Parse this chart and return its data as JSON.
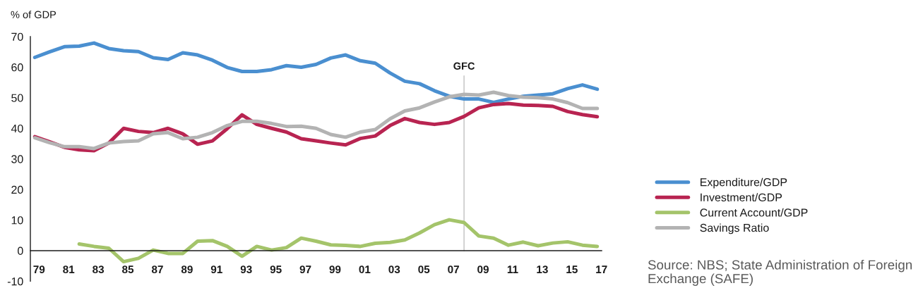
{
  "chart_data": {
    "type": "line",
    "ylabel": "% of GDP",
    "x": [
      1979,
      1980,
      1981,
      1982,
      1983,
      1984,
      1985,
      1986,
      1987,
      1988,
      1989,
      1990,
      1991,
      1992,
      1993,
      1994,
      1995,
      1996,
      1997,
      1998,
      1999,
      2000,
      2001,
      2002,
      2003,
      2004,
      2005,
      2006,
      2007,
      2008,
      2009,
      2010,
      2011,
      2012,
      2013,
      2014,
      2015,
      2016,
      2017
    ],
    "series": [
      {
        "name": "Expenditure/GDP",
        "color": "#4a8fd0",
        "values": [
          63.2,
          65.0,
          66.7,
          66.9,
          67.9,
          66.1,
          65.4,
          65.1,
          63.1,
          62.5,
          64.7,
          64.0,
          62.3,
          59.9,
          58.6,
          58.6,
          59.2,
          60.5,
          60.0,
          60.9,
          63.0,
          64.0,
          62.1,
          61.3,
          58.1,
          55.4,
          54.6,
          52.3,
          50.5,
          49.6,
          49.6,
          48.5,
          49.6,
          50.5,
          50.9,
          51.3,
          53.0,
          54.2,
          52.8
        ]
      },
      {
        "name": "Investment/GDP",
        "color": "#b82451",
        "values": [
          37.3,
          35.6,
          33.8,
          33.0,
          32.7,
          35.2,
          40.0,
          39.0,
          38.6,
          40.0,
          38.2,
          34.8,
          35.9,
          39.9,
          44.4,
          41.3,
          40.0,
          38.8,
          36.6,
          35.9,
          35.2,
          34.6,
          36.7,
          37.5,
          40.9,
          43.2,
          41.9,
          41.3,
          41.9,
          43.9,
          46.7,
          47.8,
          48.1,
          47.6,
          47.5,
          47.2,
          45.5,
          44.5,
          43.8
        ]
      },
      {
        "name": "Current Account/GDP",
        "color": "#a4c46a",
        "values": [
          null,
          null,
          null,
          2.2,
          1.4,
          0.8,
          -3.6,
          -2.5,
          0.2,
          -0.9,
          -0.9,
          3.1,
          3.3,
          1.4,
          -1.8,
          1.4,
          0.2,
          1.0,
          4.1,
          3.1,
          1.9,
          1.7,
          1.4,
          2.4,
          2.7,
          3.5,
          5.8,
          8.5,
          10.1,
          9.2,
          4.8,
          4.1,
          1.8,
          2.8,
          1.6,
          2.5,
          2.9,
          1.8,
          1.4
        ]
      },
      {
        "name": "Savings Ratio",
        "color": "#b3b3b3",
        "values": [
          36.9,
          35.3,
          34.0,
          34.0,
          33.4,
          35.2,
          35.7,
          35.9,
          38.2,
          38.6,
          36.6,
          37.1,
          38.6,
          40.9,
          42.3,
          42.3,
          41.6,
          40.6,
          40.7,
          40.0,
          38.0,
          37.1,
          38.8,
          39.6,
          43.1,
          45.7,
          46.7,
          48.6,
          50.3,
          51.1,
          50.9,
          51.8,
          50.7,
          50.2,
          50.0,
          49.6,
          48.4,
          46.5,
          46.5
        ]
      }
    ],
    "xlim": [
      1978.7,
      2017.3
    ],
    "ylim": [
      -10,
      70
    ],
    "xticks": [
      {
        "value": 1979,
        "label": "79"
      },
      {
        "value": 1981,
        "label": "81"
      },
      {
        "value": 1983,
        "label": "83"
      },
      {
        "value": 1985,
        "label": "85"
      },
      {
        "value": 1987,
        "label": "87"
      },
      {
        "value": 1989,
        "label": "89"
      },
      {
        "value": 1991,
        "label": "91"
      },
      {
        "value": 1993,
        "label": "93"
      },
      {
        "value": 1995,
        "label": "95"
      },
      {
        "value": 1997,
        "label": "97"
      },
      {
        "value": 1999,
        "label": "99"
      },
      {
        "value": 2001,
        "label": "01"
      },
      {
        "value": 2003,
        "label": "03"
      },
      {
        "value": 2005,
        "label": "05"
      },
      {
        "value": 2007,
        "label": "07"
      },
      {
        "value": 2009,
        "label": "09"
      },
      {
        "value": 2011,
        "label": "11"
      },
      {
        "value": 2013,
        "label": "13"
      },
      {
        "value": 2015,
        "label": "15"
      },
      {
        "value": 2017,
        "label": "17"
      }
    ],
    "yticks": [
      -10,
      0,
      10,
      20,
      30,
      40,
      50,
      60,
      70
    ],
    "ref_lines": [
      {
        "axis": "x",
        "value": 2008,
        "label": "GFC",
        "color": "#c0c0c0"
      }
    ],
    "legend": "right",
    "annotations": [
      "Source: NBS; State Administration of Foreign Exchange (SAFE)"
    ]
  }
}
